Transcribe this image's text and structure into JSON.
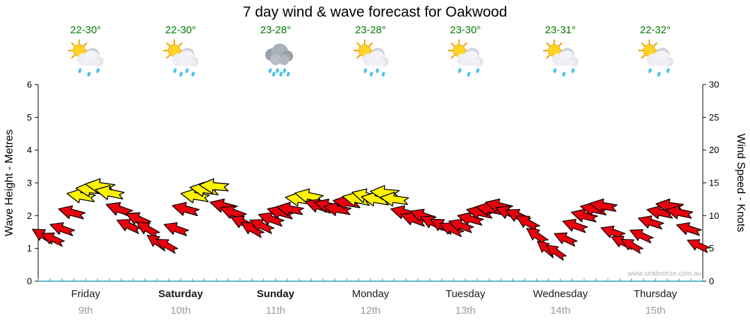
{
  "colors": {
    "temp_text": "#007a00",
    "day_text": "#1a1a1a",
    "date_text": "#9b9b9b",
    "axis_line": "#000000",
    "bottom_axis": "#2fa0c4",
    "watermark_text": "#b3b3b3"
  },
  "chart_data": {
    "type": "wind_arrow_forecast",
    "title": "7 day wind & wave forecast for Oakwood",
    "watermark": "www.seabreeze.com.au",
    "left_axis": {
      "label": "Wave Height - Metres",
      "min": 0,
      "max": 6,
      "step": 1
    },
    "right_axis": {
      "label": "Wind Speed - Knots",
      "min": 0,
      "max": 30,
      "step": 5
    },
    "arrow_colors": {
      "low": "#e8000d",
      "high": "#fff200",
      "outline": "#000000",
      "threshold_knots": 12.5
    },
    "days": [
      {
        "name": "Friday",
        "date": "9th",
        "temp": "22-30°",
        "bold": false,
        "icon": {
          "type": "sun-shower",
          "drops": 3
        },
        "knots": [
          7,
          6.5,
          8,
          10.5,
          13,
          14,
          14.5,
          13.5,
          11,
          8.5
        ],
        "dirs": [
          210,
          205,
          200,
          195,
          190,
          185,
          188,
          192,
          200,
          205
        ]
      },
      {
        "name": "Saturday",
        "date": "10th",
        "temp": "22-30°",
        "bold": true,
        "icon": {
          "type": "sun-shower",
          "drops": 4
        },
        "knots": [
          9.5,
          8,
          6,
          5.5,
          8,
          11,
          13,
          14,
          14.5,
          11.5
        ],
        "dirs": [
          205,
          210,
          215,
          210,
          200,
          195,
          190,
          188,
          185,
          195
        ]
      },
      {
        "name": "Sunday",
        "date": "11th",
        "temp": "23-28°",
        "bold": true,
        "icon": {
          "type": "rain",
          "drops": 6
        },
        "knots": [
          10.5,
          9,
          8,
          8.5,
          9.5,
          10.5,
          11,
          12.5,
          13,
          11.5
        ],
        "dirs": [
          200,
          205,
          210,
          205,
          200,
          195,
          190,
          188,
          192,
          198
        ]
      },
      {
        "name": "Monday",
        "date": "12th",
        "temp": "23-28°",
        "bold": false,
        "icon": {
          "type": "sun-shower",
          "drops": 4
        },
        "knots": [
          11.5,
          11,
          12,
          12.5,
          13,
          12.5,
          13.5,
          12.5,
          10.5,
          9.5
        ],
        "dirs": [
          195,
          190,
          188,
          192,
          195,
          190,
          185,
          188,
          195,
          200
        ]
      },
      {
        "name": "Tuesday",
        "date": "13th",
        "temp": "23-30°",
        "bold": false,
        "icon": {
          "type": "sun-shower",
          "drops": 3
        },
        "knots": [
          10,
          9,
          8.5,
          8,
          8.5,
          9.5,
          10.5,
          11,
          11.5,
          10.5
        ],
        "dirs": [
          200,
          205,
          210,
          205,
          200,
          195,
          192,
          190,
          195,
          200
        ]
      },
      {
        "name": "Wednesday",
        "date": "14th",
        "temp": "23-31°",
        "bold": false,
        "icon": {
          "type": "sun-shower",
          "drops": 3
        },
        "knots": [
          10,
          9,
          7,
          5,
          4.5,
          6.5,
          8.5,
          10,
          11,
          11.5
        ],
        "dirs": [
          205,
          210,
          215,
          220,
          215,
          205,
          200,
          195,
          192,
          190
        ]
      },
      {
        "name": "Thursday",
        "date": "15th",
        "temp": "22-32°",
        "bold": false,
        "icon": {
          "type": "sun-shower",
          "drops": 3
        },
        "knots": [
          7.5,
          6,
          5.5,
          7,
          9,
          10.5,
          11.5,
          10.5,
          8,
          5.5
        ],
        "dirs": [
          200,
          205,
          210,
          205,
          198,
          192,
          188,
          192,
          198,
          205
        ]
      }
    ]
  }
}
